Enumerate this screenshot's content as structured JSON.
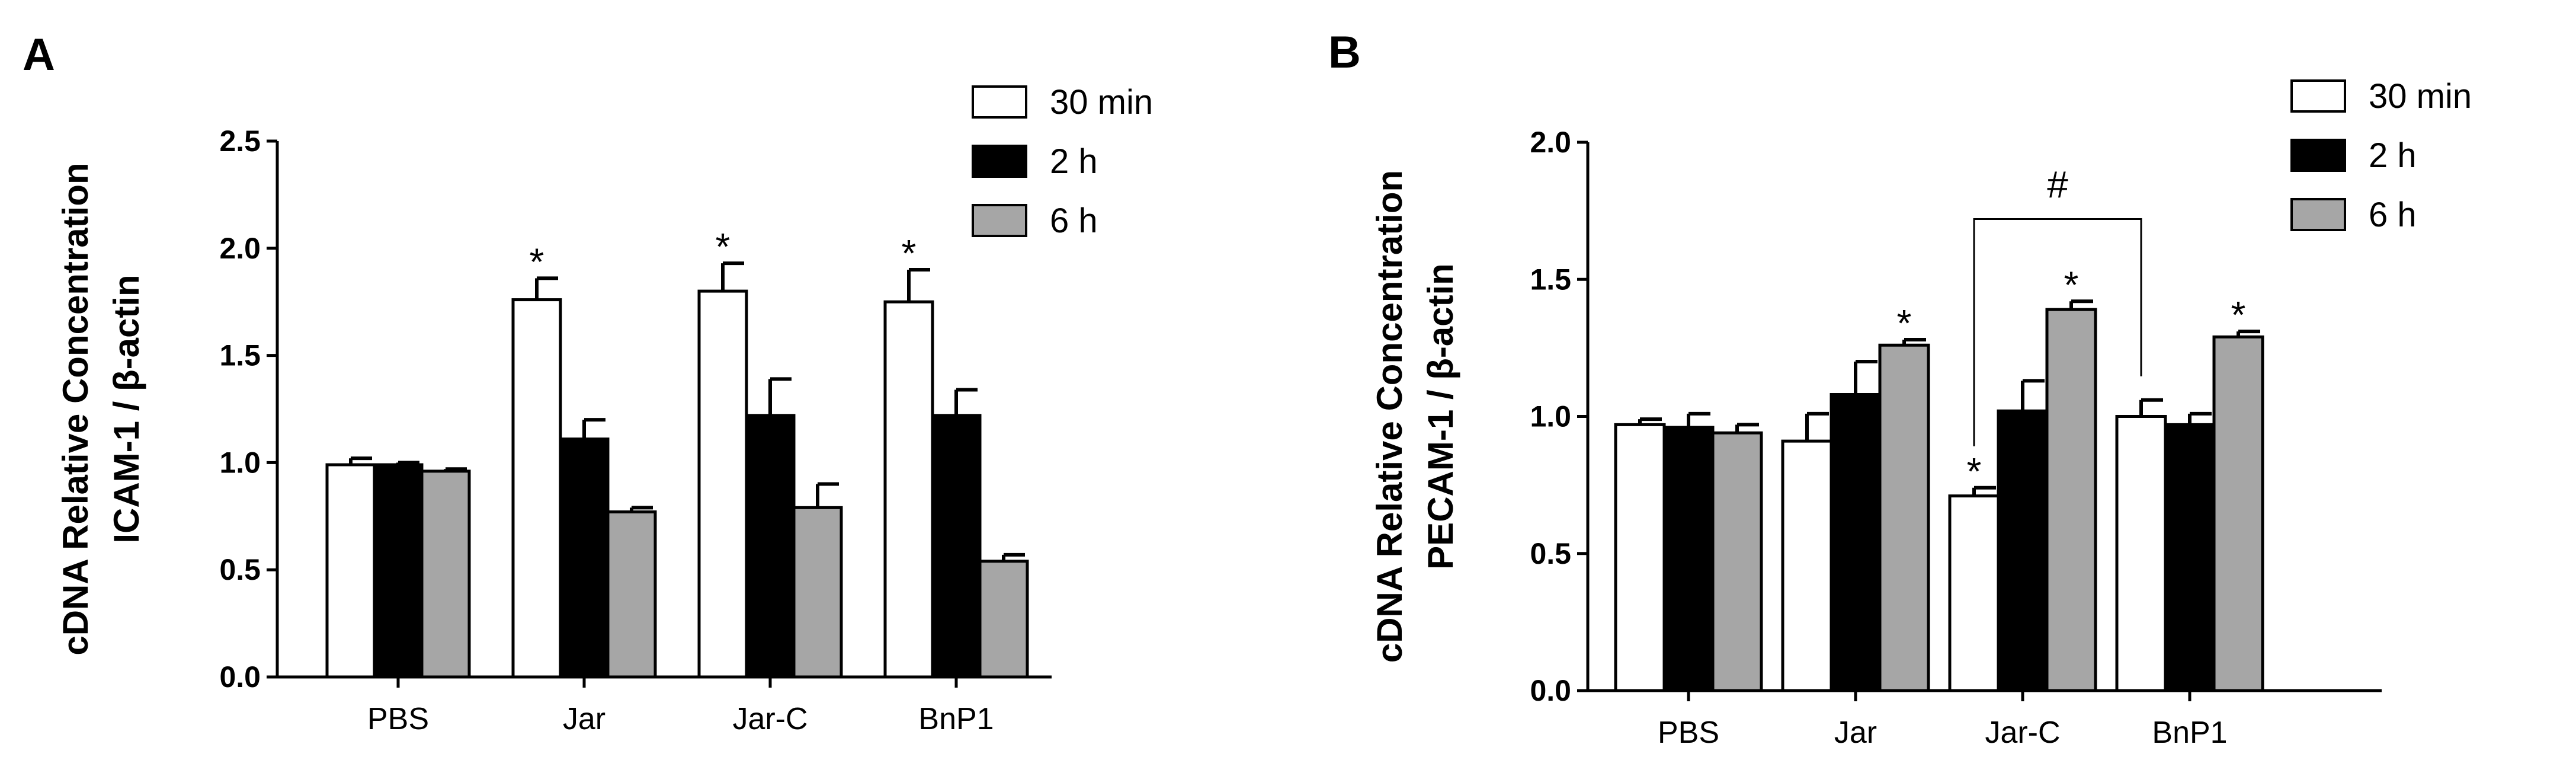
{
  "chart_data": [
    {
      "type": "bar",
      "panel_label": "A",
      "ylabel_lines": [
        "cDNA Relative Concentration",
        "ICAM-1 / β-actin"
      ],
      "categories": [
        "PBS",
        "Jar",
        "Jar-C",
        "BnP1"
      ],
      "series": [
        {
          "name": "30 min",
          "color": "#ffffff",
          "values": [
            0.99,
            1.76,
            1.8,
            1.75
          ],
          "errors": [
            0.03,
            0.1,
            0.13,
            0.15
          ]
        },
        {
          "name": "2 h",
          "color": "#000000",
          "values": [
            0.99,
            1.11,
            1.22,
            1.22
          ],
          "errors": [
            0.01,
            0.09,
            0.17,
            0.12
          ]
        },
        {
          "name": "6 h",
          "color": "#a6a6a6",
          "values": [
            0.96,
            0.77,
            0.79,
            0.54
          ],
          "errors": [
            0.01,
            0.02,
            0.11,
            0.03
          ]
        }
      ],
      "ylim": [
        0,
        2.5
      ],
      "yticks": [
        "0.0",
        "0.5",
        "1.0",
        "1.5",
        "2.0",
        "2.5"
      ],
      "annotations": [
        {
          "text": "*",
          "category": "Jar",
          "series": "30 min"
        },
        {
          "text": "*",
          "category": "Jar-C",
          "series": "30 min"
        },
        {
          "text": "*",
          "category": "BnP1",
          "series": "30 min"
        }
      ],
      "brackets": []
    },
    {
      "type": "bar",
      "panel_label": "B",
      "ylabel_lines": [
        "cDNA Relative Concentration",
        "PECAM-1 / β-actin"
      ],
      "categories": [
        "PBS",
        "Jar",
        "Jar-C",
        "BnP1"
      ],
      "series": [
        {
          "name": "30 min",
          "color": "#ffffff",
          "values": [
            0.97,
            0.91,
            0.71,
            1.0
          ],
          "errors": [
            0.02,
            0.1,
            0.03,
            0.06
          ]
        },
        {
          "name": "2 h",
          "color": "#000000",
          "values": [
            0.96,
            1.08,
            1.02,
            0.97
          ],
          "errors": [
            0.05,
            0.12,
            0.11,
            0.04
          ]
        },
        {
          "name": "6 h",
          "color": "#a6a6a6",
          "values": [
            0.94,
            1.26,
            1.39,
            1.29
          ],
          "errors": [
            0.03,
            0.02,
            0.03,
            0.02
          ]
        }
      ],
      "ylim": [
        0,
        2.0
      ],
      "yticks": [
        "0.0",
        "0.5",
        "1.0",
        "1.5",
        "2.0"
      ],
      "annotations": [
        {
          "text": "*",
          "category": "Jar",
          "series": "6 h"
        },
        {
          "text": "*",
          "category": "Jar-C",
          "series": "30 min"
        },
        {
          "text": "*",
          "category": "Jar-C",
          "series": "6 h"
        },
        {
          "text": "*",
          "category": "BnP1",
          "series": "6 h"
        }
      ],
      "brackets": [
        {
          "text": "#",
          "from_category": "Jar-C",
          "to_category": "BnP1",
          "y": 1.72
        }
      ]
    }
  ]
}
